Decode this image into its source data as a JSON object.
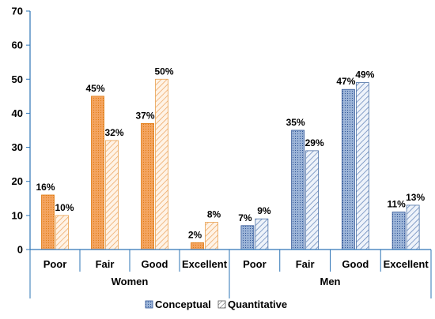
{
  "chart_data": {
    "type": "bar",
    "ylim": [
      0,
      70
    ],
    "yticks": [
      0,
      10,
      20,
      30,
      40,
      50,
      60,
      70
    ],
    "groups": [
      {
        "label": "Women",
        "categories": [
          "Poor",
          "Fair",
          "Good",
          "Excellent"
        ],
        "series": [
          {
            "name": "Conceptual",
            "values": [
              16,
              45,
              37,
              2
            ],
            "labels": [
              "16%",
              "45%",
              "37%",
              "2%"
            ]
          },
          {
            "name": "Quantitative",
            "values": [
              10,
              32,
              50,
              8
            ],
            "labels": [
              "10%",
              "32%",
              "50%",
              "8%"
            ]
          }
        ],
        "colors": {
          "conceptual": "#F4A460",
          "conceptual_stroke": "#E07B12",
          "quantitative": "#FBE3C9",
          "quantitative_stroke": "#E9A050"
        }
      },
      {
        "label": "Men",
        "categories": [
          "Poor",
          "Fair",
          "Good",
          "Excellent"
        ],
        "series": [
          {
            "name": "Conceptual",
            "values": [
              7,
              35,
              47,
              11
            ],
            "labels": [
              "7%",
              "35%",
              "47%",
              "11%"
            ]
          },
          {
            "name": "Quantitative",
            "values": [
              9,
              29,
              49,
              13
            ],
            "labels": [
              "9%",
              "29%",
              "49%",
              "13%"
            ]
          }
        ],
        "colors": {
          "conceptual": "#8FAAD0",
          "conceptual_stroke": "#2F5597",
          "quantitative": "#DCE6F2",
          "quantitative_stroke": "#4A6FA5"
        }
      }
    ],
    "legend": {
      "items": [
        "Conceptual",
        "Quantitative"
      ],
      "position": "bottom"
    },
    "axis_color": "#2E75B6",
    "grid": false
  }
}
